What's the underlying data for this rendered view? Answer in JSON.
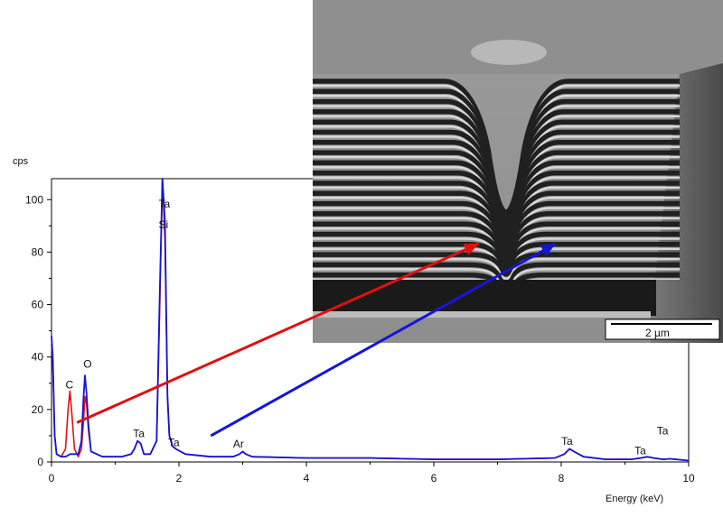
{
  "chart_data": {
    "type": "line",
    "xlabel": "Energy (keV)",
    "ylabel": "cps",
    "xlim": [
      0,
      10
    ],
    "ylim": [
      0,
      108
    ],
    "x_ticks": [
      0,
      2,
      4,
      6,
      8,
      10
    ],
    "y_ticks": [
      0,
      20,
      40,
      60,
      80,
      100
    ],
    "grid": false,
    "series": [
      {
        "color": "#e01010",
        "x": [
          0.0,
          0.02,
          0.05,
          0.08,
          0.15,
          0.22,
          0.26,
          0.29,
          0.32,
          0.36,
          0.42,
          0.47,
          0.5,
          0.525,
          0.55,
          0.58,
          0.62,
          0.8,
          1.1,
          1.25,
          1.3,
          1.35,
          1.4,
          1.45,
          1.55,
          1.65,
          1.7,
          1.74,
          1.78,
          1.82,
          1.85,
          1.9,
          1.95,
          2.1,
          2.5,
          2.85,
          2.95,
          3.0,
          3.05,
          3.15,
          4.0,
          5.0,
          6.0,
          7.0,
          7.9,
          8.05,
          8.13,
          8.2,
          8.35,
          8.7,
          9.1,
          9.25,
          9.35,
          9.45,
          9.6,
          9.7,
          9.8,
          10.0
        ],
        "values": [
          45,
          38,
          10,
          3,
          2,
          5,
          20,
          27,
          18,
          5,
          2,
          5,
          15,
          25,
          22,
          12,
          4,
          2,
          2,
          3,
          5,
          8,
          7,
          3,
          3,
          8,
          60,
          108,
          85,
          25,
          10,
          6,
          5,
          3,
          2,
          2,
          3,
          4,
          3,
          2,
          1.5,
          1.5,
          1,
          1,
          1.5,
          3,
          5,
          4,
          2,
          1,
          1,
          1.5,
          2,
          1.5,
          1,
          1.2,
          1,
          0.5
        ]
      },
      {
        "color": "#1515d8",
        "x": [
          0.0,
          0.02,
          0.05,
          0.08,
          0.15,
          0.22,
          0.26,
          0.29,
          0.32,
          0.36,
          0.42,
          0.47,
          0.5,
          0.525,
          0.55,
          0.58,
          0.62,
          0.8,
          1.1,
          1.25,
          1.3,
          1.35,
          1.4,
          1.45,
          1.55,
          1.65,
          1.7,
          1.74,
          1.78,
          1.82,
          1.85,
          1.9,
          1.95,
          2.1,
          2.5,
          2.85,
          2.95,
          3.0,
          3.05,
          3.15,
          4.0,
          5.0,
          6.0,
          7.0,
          7.9,
          8.05,
          8.13,
          8.2,
          8.35,
          8.7,
          9.1,
          9.25,
          9.35,
          9.45,
          9.6,
          9.7,
          9.8,
          10.0
        ],
        "values": [
          48,
          40,
          10,
          3,
          2,
          2,
          2.5,
          3,
          3,
          3,
          3,
          8,
          24,
          33,
          26,
          14,
          4,
          2,
          2,
          3,
          5,
          8,
          7,
          3,
          3,
          8,
          65,
          108,
          92,
          25,
          10,
          6,
          5,
          3,
          2,
          2,
          3,
          4,
          3,
          2,
          1.5,
          1.5,
          1,
          1,
          1.5,
          3,
          5,
          4,
          2,
          1,
          1,
          1.5,
          2,
          1.5,
          1,
          1.2,
          1,
          0.5
        ]
      }
    ],
    "annotations": [
      {
        "text": "C",
        "x": 0.22,
        "y": 28
      },
      {
        "text": "O",
        "x": 0.5,
        "y": 36
      },
      {
        "text": "Ta",
        "x": 1.68,
        "y": 97
      },
      {
        "text": "Si",
        "x": 1.68,
        "y": 89
      },
      {
        "text": "Ta",
        "x": 1.28,
        "y": 9.5
      },
      {
        "text": "Ta",
        "x": 1.83,
        "y": 6
      },
      {
        "text": "Ar",
        "x": 2.85,
        "y": 5.5
      },
      {
        "text": "Ta",
        "x": 8.0,
        "y": 6.5
      },
      {
        "text": "Ta",
        "x": 9.15,
        "y": 3
      },
      {
        "text": "Ta",
        "x": 9.5,
        "y": 10.5
      }
    ],
    "arrows": [
      {
        "color": "#e01010",
        "from": [
          0.4,
          15
        ]
      },
      {
        "color": "#1515d8",
        "from": [
          2.5,
          10
        ]
      }
    ]
  },
  "micrograph": {
    "scale_bar_label": "2 µm",
    "layer_count": 20
  }
}
